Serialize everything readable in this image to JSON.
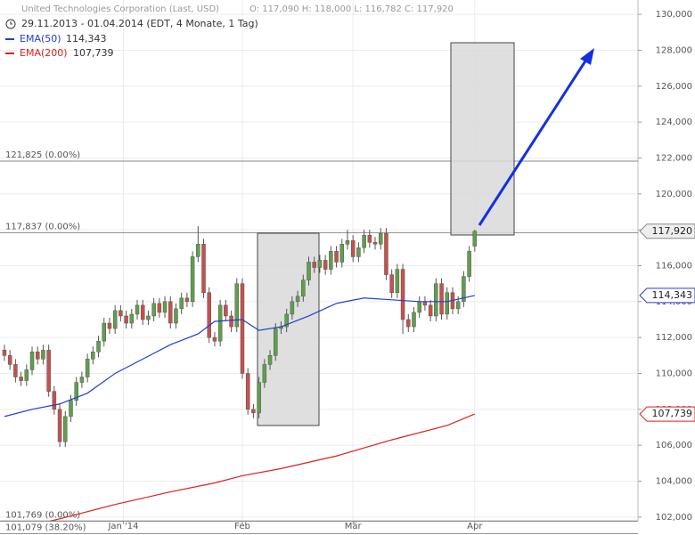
{
  "chart_data": {
    "type": "candlestick",
    "title": "United Technologies Corporation (Last, USD)",
    "subtitle": "O: 117,090  H: 118,000  L: 116,782  C: 117,920",
    "period": "29.11.2013 - 01.04.2014 (EDT, 4 Monate, 1 Tag)",
    "xlim": [
      -0.8,
      114.5
    ],
    "xticks": [
      {
        "value": 21.5,
        "label": "Jan '14"
      },
      {
        "value": 43,
        "label": "Feb"
      },
      {
        "value": 63,
        "label": "Mär"
      },
      {
        "value": 85,
        "label": "Apr"
      }
    ],
    "ylim": [
      101000,
      130800
    ],
    "yticks": [
      {
        "value": 102000,
        "label": "102,000"
      },
      {
        "value": 104000,
        "label": "104,000"
      },
      {
        "value": 106000,
        "label": "106,000"
      },
      {
        "value": 108000,
        "label": "108,000"
      },
      {
        "value": 110000,
        "label": "110,000"
      },
      {
        "value": 112000,
        "label": "112,000"
      },
      {
        "value": 114000,
        "label": "114,000"
      },
      {
        "value": 116000,
        "label": "116,000"
      },
      {
        "value": 118000,
        "label": "118,000"
      },
      {
        "value": 120000,
        "label": "120,000"
      },
      {
        "value": 122000,
        "label": "122,000"
      },
      {
        "value": 124000,
        "label": "124,000"
      },
      {
        "value": 126000,
        "label": "126,000"
      },
      {
        "value": 128000,
        "label": "128,000"
      },
      {
        "value": 130000,
        "label": "130,000"
      }
    ],
    "grid": true,
    "up_color": "#5f9f4c",
    "down_color": "#c8504c",
    "open": [
      111300,
      111000,
      110500,
      109800,
      109600,
      110200,
      111200,
      110800,
      111300,
      109000,
      108000,
      106200,
      107600,
      108500,
      109500,
      109800,
      110800,
      111200,
      111800,
      112800,
      112500,
      113500,
      113200,
      112800,
      113300,
      113800,
      113000,
      113200,
      113900,
      113400,
      114000,
      112800,
      113600,
      114200,
      114000,
      116500,
      117200,
      114500,
      112000,
      111800,
      113800,
      113200,
      112600,
      115000,
      110000,
      108000,
      107800,
      109500,
      110500,
      111000,
      112500,
      112600,
      113300,
      114000,
      114300,
      115200,
      116200,
      115900,
      116300,
      115800,
      116800,
      116200,
      117200,
      117400,
      116500,
      117000,
      117700,
      117300,
      117200,
      117800,
      115500,
      114500,
      115800,
      113000,
      112600,
      113400,
      114000,
      113800,
      113200,
      115000,
      113300,
      114500,
      113600,
      114000,
      115400,
      117090
    ],
    "high": [
      111600,
      111300,
      110800,
      110100,
      110500,
      111500,
      111500,
      111600,
      111600,
      109300,
      108300,
      107900,
      108800,
      109800,
      110100,
      111100,
      111500,
      112100,
      113100,
      113100,
      113800,
      113800,
      113500,
      113600,
      114100,
      114100,
      113500,
      114200,
      114200,
      114300,
      114300,
      113900,
      114500,
      114500,
      116800,
      118200,
      117500,
      114800,
      112300,
      114100,
      114100,
      113500,
      115300,
      115300,
      110300,
      108300,
      109800,
      110800,
      111300,
      112800,
      112900,
      113600,
      114300,
      114600,
      115500,
      116500,
      116500,
      116600,
      116600,
      117100,
      117100,
      117500,
      118000,
      117700,
      117300,
      118000,
      118000,
      117600,
      118100,
      118100,
      115800,
      116100,
      116100,
      113300,
      113700,
      114300,
      114300,
      114100,
      115300,
      115300,
      114800,
      114800,
      114300,
      115700,
      117100,
      118000
    ],
    "low": [
      110700,
      110200,
      109500,
      109300,
      109300,
      109900,
      110500,
      110500,
      108700,
      107700,
      105900,
      105900,
      107300,
      108200,
      109200,
      109500,
      110500,
      110900,
      111500,
      112200,
      112200,
      112900,
      112500,
      112500,
      113000,
      112700,
      112700,
      112900,
      113100,
      113100,
      112500,
      112500,
      113300,
      113700,
      113700,
      116200,
      114200,
      111700,
      111500,
      111500,
      112900,
      112300,
      112300,
      109700,
      107700,
      107500,
      107500,
      109200,
      110200,
      110700,
      112200,
      112300,
      113000,
      113700,
      114000,
      114900,
      115600,
      115600,
      115500,
      115500,
      115900,
      115900,
      116900,
      116200,
      116200,
      116700,
      117000,
      116900,
      116900,
      115200,
      114200,
      114200,
      112200,
      112300,
      112300,
      113100,
      113500,
      112900,
      112900,
      113000,
      113000,
      113300,
      113300,
      113700,
      115100,
      116782
    ],
    "close": [
      111000,
      110500,
      109800,
      109600,
      110200,
      111200,
      110800,
      111300,
      109000,
      108000,
      106200,
      107600,
      108500,
      109500,
      109800,
      110800,
      111200,
      111800,
      112800,
      112500,
      113500,
      113200,
      112800,
      113300,
      113800,
      113000,
      113200,
      113900,
      113400,
      114000,
      112800,
      113600,
      114200,
      114000,
      116500,
      117200,
      114500,
      112000,
      111800,
      113800,
      113200,
      112600,
      115000,
      110000,
      108000,
      107800,
      109500,
      110500,
      111000,
      112500,
      112600,
      113300,
      114000,
      114300,
      115200,
      116200,
      115900,
      116300,
      115800,
      116800,
      116200,
      117200,
      117400,
      116500,
      117000,
      117700,
      117300,
      117200,
      117800,
      115500,
      114500,
      115800,
      113000,
      112600,
      113400,
      114000,
      113800,
      113200,
      115000,
      113300,
      114500,
      113600,
      114000,
      115400,
      116800,
      117920
    ],
    "series": [
      {
        "name": "EMA(50)",
        "value_label": "114,343",
        "color": "#1f3fd0",
        "x": [
          0,
          5,
          10,
          15,
          20,
          25,
          30,
          35,
          38,
          43,
          46,
          50,
          55,
          60,
          65,
          70,
          75,
          80,
          85
        ],
        "values": [
          107600,
          108000,
          108300,
          108900,
          110000,
          110800,
          111600,
          112200,
          112900,
          113000,
          112400,
          112600,
          113200,
          113900,
          114200,
          114100,
          114000,
          114000,
          114343
        ]
      },
      {
        "name": "EMA(200)",
        "value_label": "107,739",
        "color": "#e01e1e",
        "x": [
          0,
          10,
          20,
          30,
          38,
          43,
          50,
          60,
          70,
          80,
          85
        ],
        "values": [
          101200,
          101900,
          102700,
          103400,
          103900,
          104300,
          104700,
          105400,
          106300,
          107100,
          107739
        ]
      }
    ],
    "levels": [
      {
        "value": 121825,
        "label": "121,825 (0.00%)"
      },
      {
        "value": 117837,
        "label": "117,837 (0.00%)"
      },
      {
        "value": 101769,
        "label": "101,769 (0.00%)"
      },
      {
        "value": 101079,
        "label": "101,079 (38.20%)"
      }
    ],
    "price_markers": [
      {
        "value": 117920,
        "label": "117,920",
        "color": "#888888"
      },
      {
        "value": 114343,
        "label": "114,343",
        "color": "#1f3fd0"
      },
      {
        "value": 107739,
        "label": "107,739",
        "color": "#e01e1e"
      }
    ]
  }
}
